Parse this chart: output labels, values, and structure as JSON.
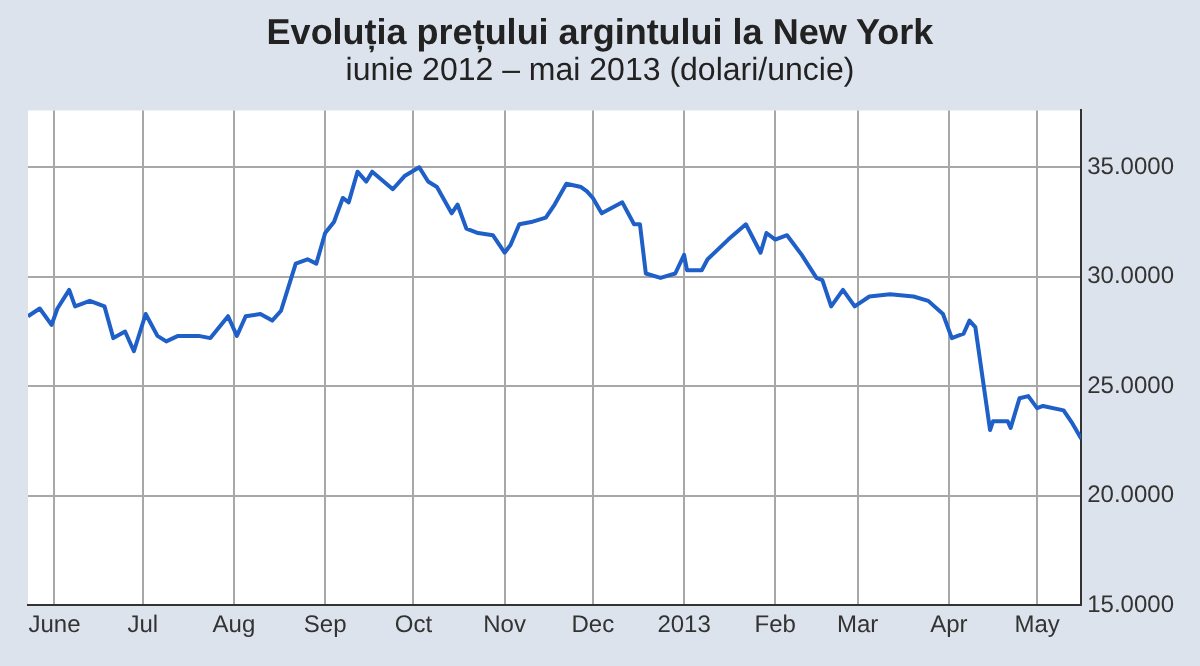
{
  "chart_data": {
    "type": "line",
    "title": "Evoluția prețului argintului la New York",
    "subtitle": "iunie 2012 – mai 2013 (dolari/uncie)",
    "x": [
      "2012-05-23",
      "2012-05-27",
      "2012-05-31",
      "2012-06-02",
      "2012-06-06",
      "2012-06-08",
      "2012-06-13",
      "2012-06-18",
      "2012-06-21",
      "2012-06-25",
      "2012-06-28",
      "2012-07-02",
      "2012-07-06",
      "2012-07-09",
      "2012-07-13",
      "2012-07-20",
      "2012-07-24",
      "2012-07-30",
      "2012-08-02",
      "2012-08-05",
      "2012-08-10",
      "2012-08-14",
      "2012-08-17",
      "2012-08-22",
      "2012-08-26",
      "2012-08-29",
      "2012-09-01",
      "2012-09-04",
      "2012-09-07",
      "2012-09-09",
      "2012-09-12",
      "2012-09-15",
      "2012-09-17",
      "2012-09-24",
      "2012-09-28",
      "2012-10-03",
      "2012-10-06",
      "2012-10-09",
      "2012-10-14",
      "2012-10-16",
      "2012-10-19",
      "2012-10-23",
      "2012-10-28",
      "2012-11-01",
      "2012-11-03",
      "2012-11-06",
      "2012-11-10",
      "2012-11-15",
      "2012-11-18",
      "2012-11-22",
      "2012-11-27",
      "2012-11-29",
      "2012-12-01",
      "2012-12-04",
      "2012-12-11",
      "2012-12-15",
      "2012-12-17",
      "2012-12-19",
      "2012-12-24",
      "2012-12-29",
      "2013-01-01",
      "2013-01-02",
      "2013-01-07",
      "2013-01-09",
      "2013-01-16",
      "2013-01-22",
      "2013-01-27",
      "2013-01-29",
      "2013-02-01",
      "2013-02-05",
      "2013-02-10",
      "2013-02-15",
      "2013-02-17",
      "2013-02-20",
      "2013-02-24",
      "2013-02-28",
      "2013-03-05",
      "2013-03-12",
      "2013-03-20",
      "2013-03-25",
      "2013-03-30",
      "2013-04-02",
      "2013-04-06",
      "2013-04-08",
      "2013-04-10",
      "2013-04-15",
      "2013-04-16",
      "2013-04-21",
      "2013-04-22",
      "2013-04-25",
      "2013-04-28",
      "2013-05-01",
      "2013-05-03",
      "2013-05-10",
      "2013-05-13",
      "2013-05-16"
    ],
    "series": [
      {
        "color": "#1f5fc8",
        "values": [
          28.2,
          28.55,
          27.8,
          28.55,
          29.4,
          28.65,
          28.9,
          28.65,
          27.2,
          27.5,
          26.6,
          28.3,
          27.3,
          27.05,
          27.3,
          27.3,
          27.2,
          28.2,
          27.3,
          28.2,
          28.3,
          28.0,
          28.45,
          30.6,
          30.8,
          30.6,
          32.0,
          32.5,
          33.6,
          33.4,
          34.8,
          34.35,
          34.8,
          34.0,
          34.6,
          35.0,
          34.35,
          34.1,
          32.9,
          33.3,
          32.2,
          32.0,
          31.9,
          31.1,
          31.45,
          32.4,
          32.5,
          32.7,
          33.3,
          34.25,
          34.1,
          33.9,
          33.6,
          32.9,
          33.4,
          32.4,
          32.4,
          30.15,
          29.95,
          30.15,
          31.0,
          30.3,
          30.3,
          30.8,
          31.7,
          32.4,
          31.1,
          32.0,
          31.7,
          31.9,
          31.0,
          29.95,
          29.85,
          28.65,
          29.4,
          28.65,
          29.1,
          29.2,
          29.1,
          28.9,
          28.3,
          27.2,
          27.4,
          28.0,
          27.7,
          23.0,
          23.4,
          23.4,
          23.1,
          24.45,
          24.55,
          24.0,
          24.1,
          23.9,
          23.3,
          22.6
        ]
      }
    ],
    "xlim": [
      "2012-05-23",
      "2013-05-16"
    ],
    "xticks": [
      {
        "value": "2012-06-01",
        "label": "June"
      },
      {
        "value": "2012-07-01",
        "label": "Jul"
      },
      {
        "value": "2012-08-01",
        "label": "Aug"
      },
      {
        "value": "2012-09-01",
        "label": "Sep"
      },
      {
        "value": "2012-10-01",
        "label": "Oct"
      },
      {
        "value": "2012-11-01",
        "label": "Nov"
      },
      {
        "value": "2012-12-01",
        "label": "Dec"
      },
      {
        "value": "2013-01-01",
        "label": "2013"
      },
      {
        "value": "2013-02-01",
        "label": "Feb"
      },
      {
        "value": "2013-03-01",
        "label": "Mar"
      },
      {
        "value": "2013-04-01",
        "label": "Apr"
      },
      {
        "value": "2013-05-01",
        "label": "May"
      }
    ],
    "ylim": [
      15,
      37.6
    ],
    "yticks": [
      {
        "value": 15,
        "label": "15.0000"
      },
      {
        "value": 20,
        "label": "20.0000"
      },
      {
        "value": 25,
        "label": "25.0000"
      },
      {
        "value": 30,
        "label": "30.0000"
      },
      {
        "value": 35,
        "label": "35.0000"
      }
    ],
    "grid": true,
    "legend": false,
    "marker": "none",
    "line_style": "solid"
  }
}
